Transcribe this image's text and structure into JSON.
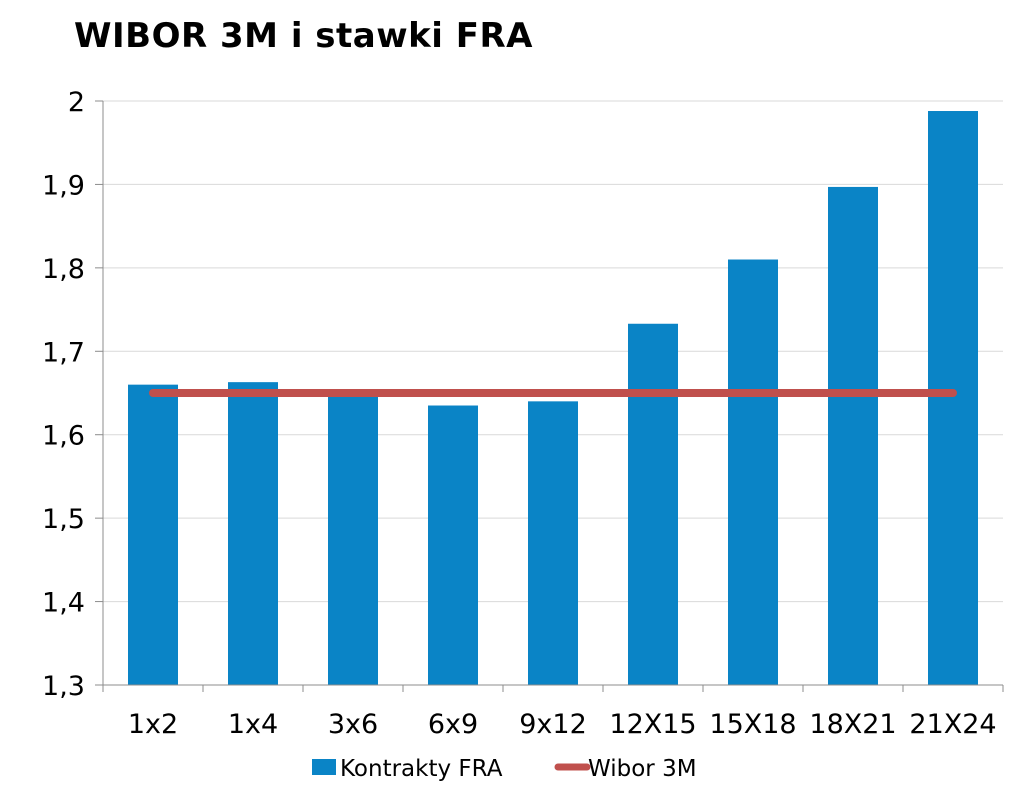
{
  "chart_data": {
    "type": "bar",
    "title": "WIBOR 3M i stawki FRA",
    "xlabel": "",
    "ylabel": "",
    "categories": [
      "1x2",
      "1x4",
      "3x6",
      "6x9",
      "9x12",
      "12X15",
      "15X18",
      "18X21",
      "21X24"
    ],
    "series": [
      {
        "name": "Kontrakty FRA",
        "type": "bar",
        "color": "#0a84c6",
        "values": [
          1.66,
          1.663,
          1.65,
          1.635,
          1.64,
          1.733,
          1.81,
          1.897,
          1.988
        ]
      },
      {
        "name": "Wibor 3M",
        "type": "line",
        "color": "#c0504d",
        "values": [
          1.65,
          1.65,
          1.65,
          1.65,
          1.65,
          1.65,
          1.65,
          1.65,
          1.65
        ]
      }
    ],
    "ylim": [
      1.3,
      2.0
    ],
    "yticks": [
      1.3,
      1.4,
      1.5,
      1.6,
      1.7,
      1.8,
      1.9,
      2.0
    ],
    "ytick_labels": [
      "1,3",
      "1,4",
      "1,5",
      "1,6",
      "1,7",
      "1,8",
      "1,9",
      "2"
    ],
    "grid": true,
    "gridline_color": "#d9d9d9",
    "axis_color": "#8c8c8c",
    "legend_position": "bottom"
  }
}
